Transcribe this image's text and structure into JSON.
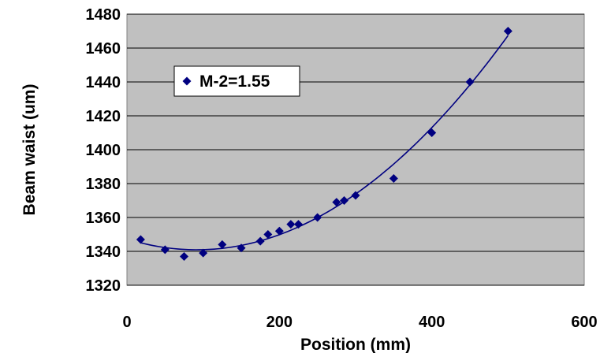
{
  "chart_data": {
    "type": "scatter",
    "title": "",
    "xlabel": "Position (mm)",
    "ylabel": "Beam waist (um)",
    "xlim": [
      0,
      600
    ],
    "ylim": [
      1320,
      1480
    ],
    "xticks": [
      0,
      200,
      400,
      600
    ],
    "yticks": [
      1320,
      1340,
      1360,
      1380,
      1400,
      1420,
      1440,
      1460,
      1480
    ],
    "grid": "horizontal",
    "legend": {
      "placement": "upper-left",
      "entries": [
        "M-2=1.55"
      ]
    },
    "series": [
      {
        "name": "M-2=1.55",
        "marker": "diamond",
        "color": "#000080",
        "x": [
          18,
          50,
          75,
          100,
          125,
          150,
          175,
          185,
          200,
          215,
          225,
          250,
          275,
          285,
          300,
          350,
          400,
          450,
          500
        ],
        "y": [
          1347,
          1341,
          1337,
          1339,
          1344,
          1342,
          1346,
          1350,
          1352,
          1356,
          1356,
          1360,
          1369,
          1370,
          1373,
          1383,
          1410,
          1440,
          1470
        ]
      }
    ],
    "trendline": {
      "type": "polynomial",
      "color": "#000080",
      "x_range": [
        18,
        500
      ]
    },
    "colors": {
      "plot_background": "#c0c0c0",
      "gridline": "#000000",
      "marker": "#000080"
    }
  }
}
